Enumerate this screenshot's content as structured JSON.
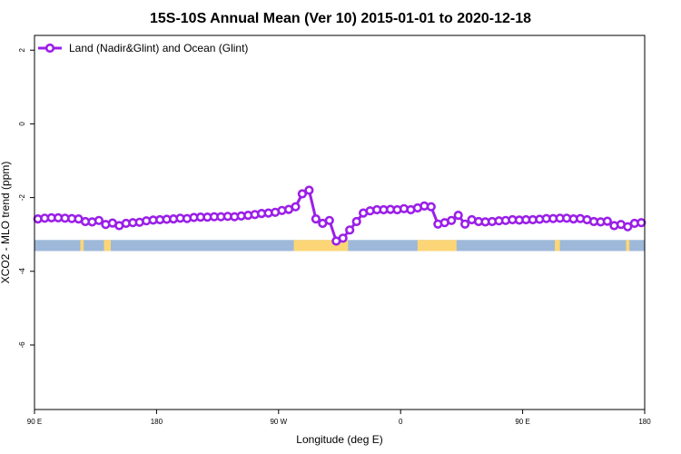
{
  "chart_data": {
    "type": "line",
    "title": "15S-10S Annual Mean (Ver 10)   2015-01-01 to 2020-12-18",
    "xlabel": "Longitude (deg E)",
    "ylabel": "XCO2 - MLO trend (ppm)",
    "xlim": [
      90,
      450
    ],
    "ylim": [
      -7.75,
      2.4
    ],
    "x_ticks": [
      {
        "value": 90,
        "label": "90 E"
      },
      {
        "value": 162,
        "label": "180"
      },
      {
        "value": 234,
        "label": "90 W"
      },
      {
        "value": 306,
        "label": "0"
      },
      {
        "value": 378,
        "label": "90 E"
      },
      {
        "value": 450,
        "label": "180"
      }
    ],
    "y_ticks": [
      {
        "value": 2,
        "label": "2"
      },
      {
        "value": 0,
        "label": "0"
      },
      {
        "value": -2,
        "label": "-2"
      },
      {
        "value": -4,
        "label": "-4"
      },
      {
        "value": -6,
        "label": "-6"
      }
    ],
    "legend": {
      "position": "top-left",
      "label": "Land (Nadir&Glint) and Ocean (Glint)"
    },
    "series": [
      {
        "name": "Land (Nadir&Glint) and Ocean (Glint)",
        "color": "#9b1fe8",
        "x": [
          92,
          96,
          100,
          104,
          108,
          112,
          116,
          120,
          124,
          128,
          132,
          136,
          140,
          144,
          148,
          152,
          156,
          160,
          164,
          168,
          172,
          176,
          180,
          184,
          188,
          192,
          196,
          200,
          204,
          208,
          212,
          216,
          220,
          224,
          228,
          232,
          236,
          240,
          244,
          248,
          252,
          256,
          260,
          264,
          268,
          272,
          276,
          280,
          284,
          288,
          292,
          296,
          300,
          304,
          308,
          312,
          316,
          320,
          324,
          328,
          332,
          336,
          340,
          344,
          348,
          352,
          356,
          360,
          364,
          368,
          372,
          376,
          380,
          384,
          388,
          392,
          396,
          400,
          404,
          408,
          412,
          416,
          420,
          424,
          428,
          432,
          436,
          440,
          444,
          448
        ],
        "y": [
          -2.58,
          -2.56,
          -2.55,
          -2.55,
          -2.56,
          -2.57,
          -2.58,
          -2.65,
          -2.66,
          -2.62,
          -2.73,
          -2.69,
          -2.76,
          -2.7,
          -2.68,
          -2.67,
          -2.63,
          -2.61,
          -2.6,
          -2.59,
          -2.58,
          -2.56,
          -2.57,
          -2.54,
          -2.53,
          -2.53,
          -2.52,
          -2.52,
          -2.51,
          -2.52,
          -2.5,
          -2.48,
          -2.46,
          -2.43,
          -2.42,
          -2.4,
          -2.35,
          -2.32,
          -2.25,
          -1.9,
          -1.8,
          -2.58,
          -2.7,
          -2.62,
          -3.18,
          -3.1,
          -2.88,
          -2.65,
          -2.42,
          -2.36,
          -2.33,
          -2.33,
          -2.32,
          -2.33,
          -2.3,
          -2.33,
          -2.28,
          -2.23,
          -2.25,
          -2.72,
          -2.68,
          -2.62,
          -2.48,
          -2.72,
          -2.6,
          -2.65,
          -2.66,
          -2.65,
          -2.63,
          -2.62,
          -2.6,
          -2.61,
          -2.6,
          -2.6,
          -2.59,
          -2.57,
          -2.57,
          -2.56,
          -2.56,
          -2.58,
          -2.57,
          -2.6,
          -2.65,
          -2.66,
          -2.64,
          -2.76,
          -2.73,
          -2.79,
          -2.7,
          -2.68
        ]
      }
    ],
    "land_ocean_band": {
      "y_range": [
        -3.45,
        -3.15
      ],
      "ocean_color": "#9eb8d9",
      "land_color": "#fcd676",
      "land_segments": [
        [
          243,
          275
        ],
        [
          316,
          339
        ],
        [
          131,
          135
        ],
        [
          117,
          119
        ],
        [
          397,
          400
        ],
        [
          439,
          441
        ]
      ]
    }
  }
}
